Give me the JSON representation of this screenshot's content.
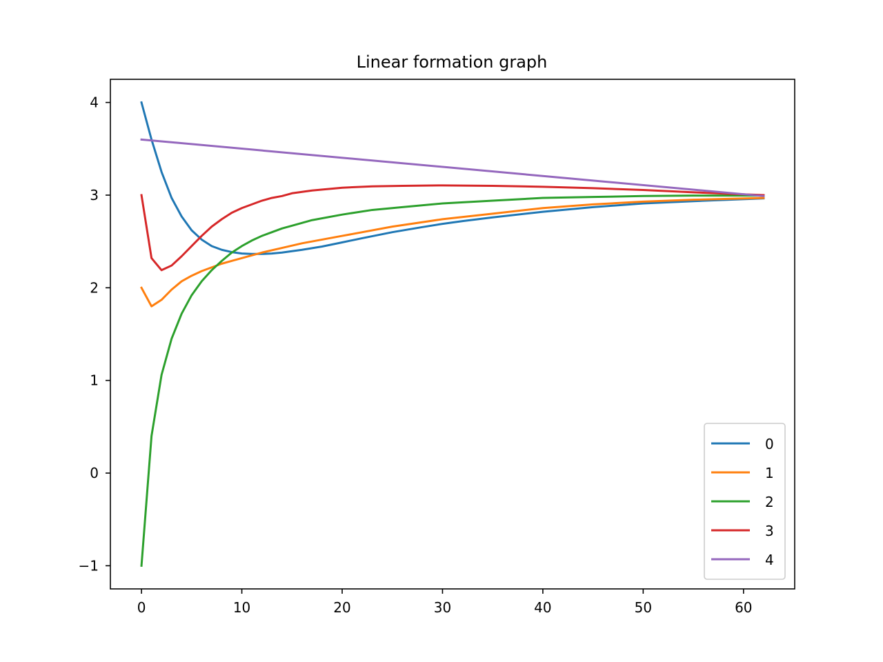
{
  "chart_data": {
    "type": "line",
    "title": "Linear formation graph",
    "xlabel": "",
    "ylabel": "",
    "xlim": [
      -3.1,
      65.1
    ],
    "ylim": [
      -1.25,
      4.25
    ],
    "xticks": [
      0,
      10,
      20,
      30,
      40,
      50,
      60
    ],
    "yticks": [
      -1,
      0,
      1,
      2,
      3,
      4
    ],
    "xtick_labels": [
      "0",
      "10",
      "20",
      "30",
      "40",
      "50",
      "60"
    ],
    "ytick_labels": [
      "−1",
      "0",
      "1",
      "2",
      "3",
      "4"
    ],
    "grid": false,
    "legend": {
      "placement": "lower-right"
    },
    "series": [
      {
        "name": "0",
        "color": "#1f77b4",
        "x": [
          0,
          1,
          2,
          3,
          4,
          5,
          6,
          7,
          8,
          9,
          10,
          11,
          12,
          13,
          14,
          15,
          16,
          18,
          20,
          22,
          25,
          28,
          30,
          32,
          35,
          40,
          45,
          50,
          55,
          62
        ],
        "y": [
          4.0,
          3.6,
          3.25,
          2.97,
          2.77,
          2.62,
          2.52,
          2.45,
          2.41,
          2.385,
          2.37,
          2.365,
          2.365,
          2.37,
          2.38,
          2.395,
          2.41,
          2.445,
          2.49,
          2.535,
          2.6,
          2.655,
          2.69,
          2.72,
          2.76,
          2.82,
          2.87,
          2.91,
          2.935,
          2.965
        ]
      },
      {
        "name": "1",
        "color": "#ff7f0e",
        "x": [
          0,
          1,
          2,
          3,
          4,
          5,
          6,
          7,
          8,
          9,
          10,
          12,
          14,
          16,
          18,
          20,
          25,
          30,
          35,
          40,
          45,
          50,
          55,
          62
        ],
        "y": [
          2.0,
          1.8,
          1.87,
          1.98,
          2.07,
          2.13,
          2.18,
          2.22,
          2.26,
          2.29,
          2.32,
          2.38,
          2.43,
          2.48,
          2.52,
          2.56,
          2.66,
          2.74,
          2.8,
          2.86,
          2.9,
          2.93,
          2.95,
          2.97
        ]
      },
      {
        "name": "2",
        "color": "#2ca02c",
        "x": [
          0,
          1,
          2,
          3,
          4,
          5,
          6,
          7,
          8,
          9,
          10,
          11,
          12,
          13,
          14,
          15,
          17,
          20,
          23,
          26,
          30,
          35,
          40,
          45,
          50,
          55,
          62
        ],
        "y": [
          -1.0,
          0.4,
          1.06,
          1.45,
          1.72,
          1.92,
          2.07,
          2.19,
          2.29,
          2.38,
          2.45,
          2.51,
          2.56,
          2.6,
          2.64,
          2.67,
          2.73,
          2.79,
          2.84,
          2.87,
          2.91,
          2.94,
          2.97,
          2.98,
          2.99,
          2.995,
          2.995
        ]
      },
      {
        "name": "3",
        "color": "#d62728",
        "x": [
          0,
          1,
          2,
          3,
          4,
          5,
          6,
          7,
          8,
          9,
          10,
          11,
          12,
          13,
          14,
          15,
          17,
          20,
          23,
          26,
          30,
          35,
          40,
          45,
          50,
          55,
          62
        ],
        "y": [
          3.0,
          2.32,
          2.19,
          2.24,
          2.34,
          2.45,
          2.56,
          2.66,
          2.74,
          2.81,
          2.86,
          2.9,
          2.94,
          2.97,
          2.99,
          3.02,
          3.05,
          3.08,
          3.095,
          3.1,
          3.105,
          3.1,
          3.09,
          3.075,
          3.055,
          3.03,
          3.0
        ]
      },
      {
        "name": "4",
        "color": "#9467bd",
        "x": [
          0,
          62
        ],
        "y": [
          3.6,
          2.99
        ]
      }
    ]
  }
}
